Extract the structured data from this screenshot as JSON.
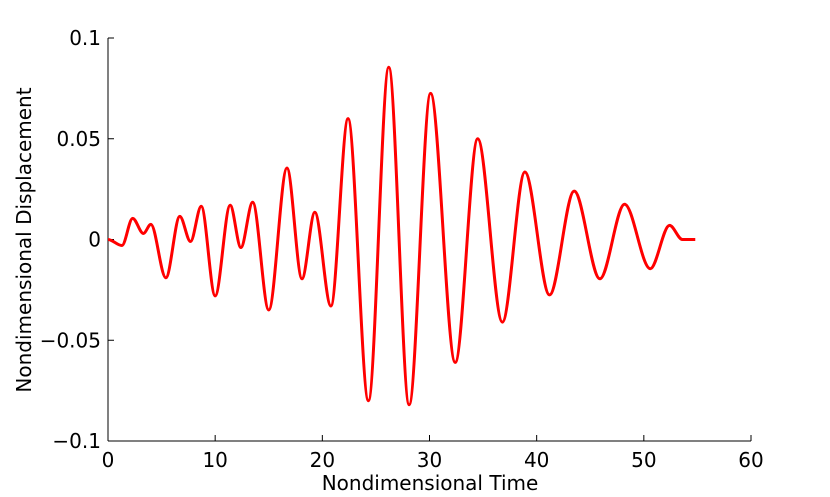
{
  "chart_data": {
    "type": "line",
    "xlabel": "Nondimensional Time",
    "ylabel": "Nondimensional Displacement",
    "x": [
      0,
      1.3,
      2.3,
      3.3,
      4.0,
      5.4,
      6.7,
      7.7,
      8.7,
      10.0,
      11.4,
      12.4,
      13.5,
      15.0,
      16.7,
      18.1,
      19.3,
      20.8,
      22.4,
      24.3,
      26.2,
      28.1,
      30.1,
      32.4,
      34.5,
      36.8,
      38.9,
      41.2,
      43.5,
      45.9,
      48.2,
      50.6,
      52.4,
      53.6,
      54.8
    ],
    "series": [
      {
        "color": "#ff0000",
        "values": [
          0,
          -0.003,
          0.0105,
          0.003,
          0.0075,
          -0.019,
          0.0115,
          -0.001,
          0.0165,
          -0.028,
          0.017,
          -0.004,
          0.0185,
          -0.035,
          0.0355,
          -0.0195,
          0.0135,
          -0.033,
          0.06,
          -0.08,
          0.0855,
          -0.082,
          0.0725,
          -0.061,
          0.05,
          -0.041,
          0.0335,
          -0.0275,
          0.024,
          -0.0195,
          0.0175,
          -0.0145,
          0.007,
          0,
          0
        ]
      }
    ],
    "xlim": [
      0,
      60
    ],
    "xticks": [
      0,
      10,
      20,
      30,
      40,
      50,
      60
    ],
    "ylim": [
      -0.1,
      0.1
    ],
    "yticks": [
      {
        "value": -0.1,
        "label": "−0.1"
      },
      {
        "value": -0.05,
        "label": "−0.05"
      },
      0,
      0.05,
      0.1
    ]
  }
}
